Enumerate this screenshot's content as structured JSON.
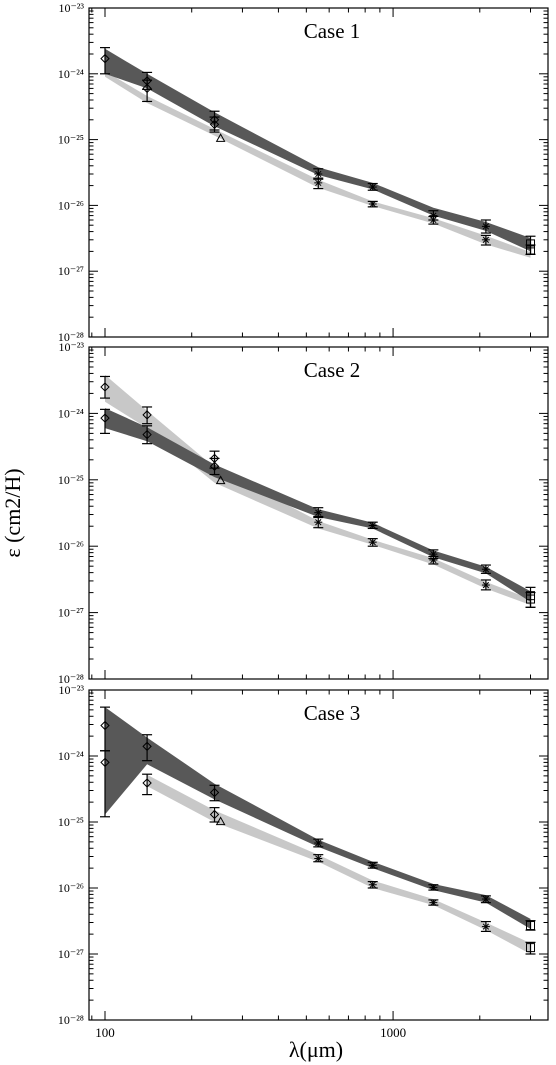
{
  "figure": {
    "y_axis_title": "ε (cm2/H)",
    "x_axis_title": "λ(μm)"
  },
  "chart_data": [
    {
      "type": "area",
      "title": "Case 1",
      "xscale": "log",
      "yscale": "log",
      "xlim": [
        88,
        3450
      ],
      "ylim": [
        1e-28,
        1e-23
      ],
      "x_tick_labels": [
        {
          "value": 100,
          "text": "100"
        },
        {
          "value": 1000,
          "text": "1000"
        }
      ],
      "y_tick_labels": [
        {
          "value": 1e-23,
          "text": "10⁻²³"
        },
        {
          "value": 1e-24,
          "text": "10⁻²⁴"
        },
        {
          "value": 1e-25,
          "text": "10⁻²⁵"
        },
        {
          "value": 1e-26,
          "text": "10⁻²⁶"
        },
        {
          "value": 1e-27,
          "text": "10⁻²⁷"
        },
        {
          "value": 1e-28,
          "text": "10⁻²⁸"
        }
      ],
      "bands": [
        {
          "color": "#c8c8c8",
          "x": [
            100,
            140,
            240,
            550,
            850,
            1380,
            2100,
            3000
          ],
          "low": [
            9e-25,
            3.6e-25,
            1.15e-25,
            1.85e-26,
            9.8e-27,
            5.3e-27,
            2.55e-27,
            1.6e-27
          ],
          "high": [
            1.1e-24,
            4.6e-25,
            1.45e-25,
            2.45e-26,
            1.15e-26,
            6.4e-27,
            3.45e-27,
            1.95e-27
          ]
        },
        {
          "color": "#585858",
          "x": [
            100,
            140,
            240,
            550,
            850,
            1380,
            2100,
            3000
          ],
          "low": [
            1e-24,
            6e-25,
            1.6e-25,
            2.9e-26,
            1.75e-26,
            7e-27,
            4.1e-27,
            2e-27
          ],
          "high": [
            2.4e-24,
            1e-24,
            2.6e-25,
            3.8e-26,
            2.2e-26,
            9.2e-27,
            5.6e-27,
            3.2e-27
          ]
        }
      ],
      "points": [
        {
          "x": 100,
          "y": 1.7e-24,
          "lo": 1e-24,
          "hi": 2.5e-24,
          "marker": "diamond"
        },
        {
          "x": 140,
          "y": 7.8e-25,
          "lo": 5.8e-25,
          "hi": 1.05e-24,
          "marker": "diamond"
        },
        {
          "x": 140,
          "y": 6e-25,
          "lo": 3.8e-25,
          "hi": 8e-25,
          "marker": "diamond"
        },
        {
          "x": 240,
          "y": 2e-25,
          "lo": 1.4e-25,
          "hi": 2.7e-25,
          "marker": "diamond"
        },
        {
          "x": 240,
          "y": 1.7e-25,
          "lo": 1.3e-25,
          "hi": 2.2e-25,
          "marker": "diamond"
        },
        {
          "x": 252,
          "y": 1.05e-25,
          "marker": "triangle"
        },
        {
          "x": 550,
          "y": 3e-26,
          "lo": 2.5e-26,
          "hi": 3.6e-26,
          "marker": "star"
        },
        {
          "x": 550,
          "y": 2.2e-26,
          "lo": 1.8e-26,
          "hi": 2.6e-26,
          "marker": "star"
        },
        {
          "x": 850,
          "y": 1.9e-26,
          "lo": 1.7e-26,
          "hi": 2.15e-26,
          "marker": "star"
        },
        {
          "x": 850,
          "y": 1.05e-26,
          "lo": 9.5e-27,
          "hi": 1.15e-26,
          "marker": "star"
        },
        {
          "x": 1380,
          "y": 7e-27,
          "lo": 6e-27,
          "hi": 8.3e-27,
          "marker": "star"
        },
        {
          "x": 1380,
          "y": 6e-27,
          "lo": 5.2e-27,
          "hi": 6.8e-27,
          "marker": "star"
        },
        {
          "x": 2100,
          "y": 4.8e-27,
          "lo": 3.8e-27,
          "hi": 6e-27,
          "marker": "star"
        },
        {
          "x": 2100,
          "y": 3e-27,
          "lo": 2.5e-27,
          "hi": 3.5e-27,
          "marker": "star"
        },
        {
          "x": 3000,
          "y": 2.6e-27,
          "lo": 1.8e-27,
          "hi": 3.4e-27,
          "marker": "square"
        },
        {
          "x": 3000,
          "y": 2.1e-27,
          "lo": 1.8e-27,
          "hi": 2.5e-27,
          "marker": "square"
        }
      ]
    },
    {
      "type": "area",
      "title": "Case 2",
      "xscale": "log",
      "yscale": "log",
      "xlim": [
        88,
        3450
      ],
      "ylim": [
        1e-28,
        1e-23
      ],
      "x_tick_labels": [
        {
          "value": 100,
          "text": "100"
        },
        {
          "value": 1000,
          "text": "1000"
        }
      ],
      "y_tick_labels": [
        {
          "value": 1e-23,
          "text": "10⁻²³"
        },
        {
          "value": 1e-24,
          "text": "10⁻²⁴"
        },
        {
          "value": 1e-25,
          "text": "10⁻²⁵"
        },
        {
          "value": 1e-26,
          "text": "10⁻²⁶"
        },
        {
          "value": 1e-27,
          "text": "10⁻²⁷"
        },
        {
          "value": 1e-28,
          "text": "10⁻²⁸"
        }
      ],
      "bands": [
        {
          "color": "#c8c8c8",
          "x": [
            100,
            140,
            240,
            550,
            850,
            1380,
            2100,
            3000
          ],
          "low": [
            1.5e-24,
            6e-25,
            9e-26,
            1.85e-26,
            1.05e-26,
            5.3e-27,
            2.3e-27,
            1.3e-27
          ],
          "high": [
            3.8e-24,
            1.1e-24,
            1.55e-25,
            2.4e-26,
            1.25e-26,
            6.6e-27,
            2.9e-27,
            1.6e-27
          ]
        },
        {
          "color": "#585858",
          "x": [
            100,
            140,
            240,
            550,
            850,
            1380,
            2100,
            3000
          ],
          "low": [
            6e-25,
            3.8e-25,
            1.1e-25,
            2.75e-26,
            1.85e-26,
            6.8e-27,
            3.9e-27,
            1.45e-27
          ],
          "high": [
            1.2e-24,
            6.2e-25,
            1.7e-25,
            3.6e-26,
            2.25e-26,
            8.6e-27,
            4.9e-27,
            2.1e-27
          ]
        }
      ],
      "points": [
        {
          "x": 100,
          "y": 2.5e-24,
          "lo": 1.7e-24,
          "hi": 3.6e-24,
          "marker": "diamond"
        },
        {
          "x": 100,
          "y": 8.5e-25,
          "lo": 5e-25,
          "hi": 1.15e-24,
          "marker": "diamond"
        },
        {
          "x": 140,
          "y": 9.5e-25,
          "lo": 7e-25,
          "hi": 1.25e-24,
          "marker": "diamond"
        },
        {
          "x": 140,
          "y": 4.8e-25,
          "lo": 3.5e-25,
          "hi": 6.5e-25,
          "marker": "diamond"
        },
        {
          "x": 240,
          "y": 2.1e-25,
          "lo": 1.5e-25,
          "hi": 2.7e-25,
          "marker": "diamond"
        },
        {
          "x": 240,
          "y": 1.6e-25,
          "lo": 1.2e-25,
          "hi": 2.1e-25,
          "marker": "diamond"
        },
        {
          "x": 252,
          "y": 9.8e-26,
          "marker": "triangle"
        },
        {
          "x": 550,
          "y": 3.2e-26,
          "lo": 2.7e-26,
          "hi": 3.8e-26,
          "marker": "star"
        },
        {
          "x": 550,
          "y": 2.3e-26,
          "lo": 1.9e-26,
          "hi": 2.8e-26,
          "marker": "star"
        },
        {
          "x": 850,
          "y": 2.05e-26,
          "lo": 1.85e-26,
          "hi": 2.3e-26,
          "marker": "star"
        },
        {
          "x": 850,
          "y": 1.15e-26,
          "lo": 1e-26,
          "hi": 1.3e-26,
          "marker": "star"
        },
        {
          "x": 1380,
          "y": 7.6e-27,
          "lo": 6.5e-27,
          "hi": 8.8e-27,
          "marker": "star"
        },
        {
          "x": 1380,
          "y": 6.2e-27,
          "lo": 5.4e-27,
          "hi": 7e-27,
          "marker": "star"
        },
        {
          "x": 2100,
          "y": 4.5e-27,
          "lo": 3.9e-27,
          "hi": 5.2e-27,
          "marker": "star"
        },
        {
          "x": 2100,
          "y": 2.6e-27,
          "lo": 2.2e-27,
          "hi": 3.1e-27,
          "marker": "star"
        },
        {
          "x": 3000,
          "y": 1.8e-27,
          "lo": 1.2e-27,
          "hi": 2.4e-27,
          "marker": "square"
        },
        {
          "x": 3000,
          "y": 1.6e-27,
          "lo": 1.2e-27,
          "hi": 2e-27,
          "marker": "square"
        }
      ]
    },
    {
      "type": "area",
      "title": "Case 3",
      "xscale": "log",
      "yscale": "log",
      "xlim": [
        88,
        3450
      ],
      "ylim": [
        1e-28,
        1e-23
      ],
      "x_tick_labels": [
        {
          "value": 100,
          "text": "100"
        },
        {
          "value": 1000,
          "text": "1000"
        }
      ],
      "y_tick_labels": [
        {
          "value": 1e-23,
          "text": "10⁻²³"
        },
        {
          "value": 1e-24,
          "text": "10⁻²⁴"
        },
        {
          "value": 1e-25,
          "text": "10⁻²⁵"
        },
        {
          "value": 1e-26,
          "text": "10⁻²⁶"
        },
        {
          "value": 1e-27,
          "text": "10⁻²⁷"
        },
        {
          "value": 1e-28,
          "text": "10⁻²⁸"
        }
      ],
      "bands": [
        {
          "color": "#c8c8c8",
          "x": [
            140,
            240,
            550,
            850,
            1380,
            2100,
            3000
          ],
          "low": [
            3.5e-25,
            1e-25,
            2.5e-26,
            1e-26,
            5.5e-27,
            2.3e-27,
            1e-27
          ],
          "high": [
            5.2e-25,
            1.5e-25,
            3.2e-26,
            1.3e-26,
            6.8e-27,
            3e-27,
            1.45e-27
          ]
        },
        {
          "color": "#585858",
          "x": [
            100,
            140,
            240,
            550,
            850,
            1380,
            2100,
            3000
          ],
          "low": [
            1.3e-25,
            7.5e-25,
            2.2e-25,
            4.2e-26,
            2e-26,
            9.3e-27,
            6e-27,
            2.4e-27
          ],
          "high": [
            5.5e-24,
            1.9e-24,
            3.8e-25,
            5.4e-26,
            2.5e-26,
            1.15e-26,
            7.8e-27,
            3.4e-27
          ]
        }
      ],
      "points": [
        {
          "x": 100,
          "y": 2.9e-24,
          "lo": 1.2e-24,
          "hi": 5.5e-24,
          "marker": "diamond"
        },
        {
          "x": 100,
          "y": 8e-25,
          "lo": 1.2e-25,
          "hi": 1.2e-24,
          "marker": "diamond"
        },
        {
          "x": 140,
          "y": 1.4e-24,
          "lo": 8.5e-25,
          "hi": 2.1e-24,
          "marker": "diamond"
        },
        {
          "x": 140,
          "y": 3.9e-25,
          "lo": 2.6e-25,
          "hi": 5.3e-25,
          "marker": "diamond"
        },
        {
          "x": 240,
          "y": 2.8e-25,
          "lo": 2.1e-25,
          "hi": 3.6e-25,
          "marker": "diamond"
        },
        {
          "x": 240,
          "y": 1.3e-25,
          "lo": 1e-25,
          "hi": 1.65e-25,
          "marker": "diamond"
        },
        {
          "x": 252,
          "y": 1.02e-25,
          "marker": "triangle"
        },
        {
          "x": 550,
          "y": 4.8e-26,
          "lo": 4.2e-26,
          "hi": 5.5e-26,
          "marker": "star"
        },
        {
          "x": 550,
          "y": 2.8e-26,
          "lo": 2.5e-26,
          "hi": 3.2e-26,
          "marker": "star"
        },
        {
          "x": 850,
          "y": 2.2e-26,
          "lo": 2e-26,
          "hi": 2.45e-26,
          "marker": "star"
        },
        {
          "x": 850,
          "y": 1.12e-26,
          "lo": 1e-26,
          "hi": 1.25e-26,
          "marker": "star"
        },
        {
          "x": 1380,
          "y": 1.02e-26,
          "lo": 9.3e-27,
          "hi": 1.12e-26,
          "marker": "star"
        },
        {
          "x": 1380,
          "y": 6e-27,
          "lo": 5.5e-27,
          "hi": 6.6e-27,
          "marker": "star"
        },
        {
          "x": 2100,
          "y": 6.8e-27,
          "lo": 6e-27,
          "hi": 7.6e-27,
          "marker": "star"
        },
        {
          "x": 2100,
          "y": 2.6e-27,
          "lo": 2.2e-27,
          "hi": 3.1e-27,
          "marker": "star"
        },
        {
          "x": 3000,
          "y": 2.7e-27,
          "lo": 2.3e-27,
          "hi": 3.2e-27,
          "marker": "square"
        },
        {
          "x": 3000,
          "y": 1.25e-27,
          "lo": 1e-27,
          "hi": 1.5e-27,
          "marker": "square"
        }
      ]
    }
  ]
}
